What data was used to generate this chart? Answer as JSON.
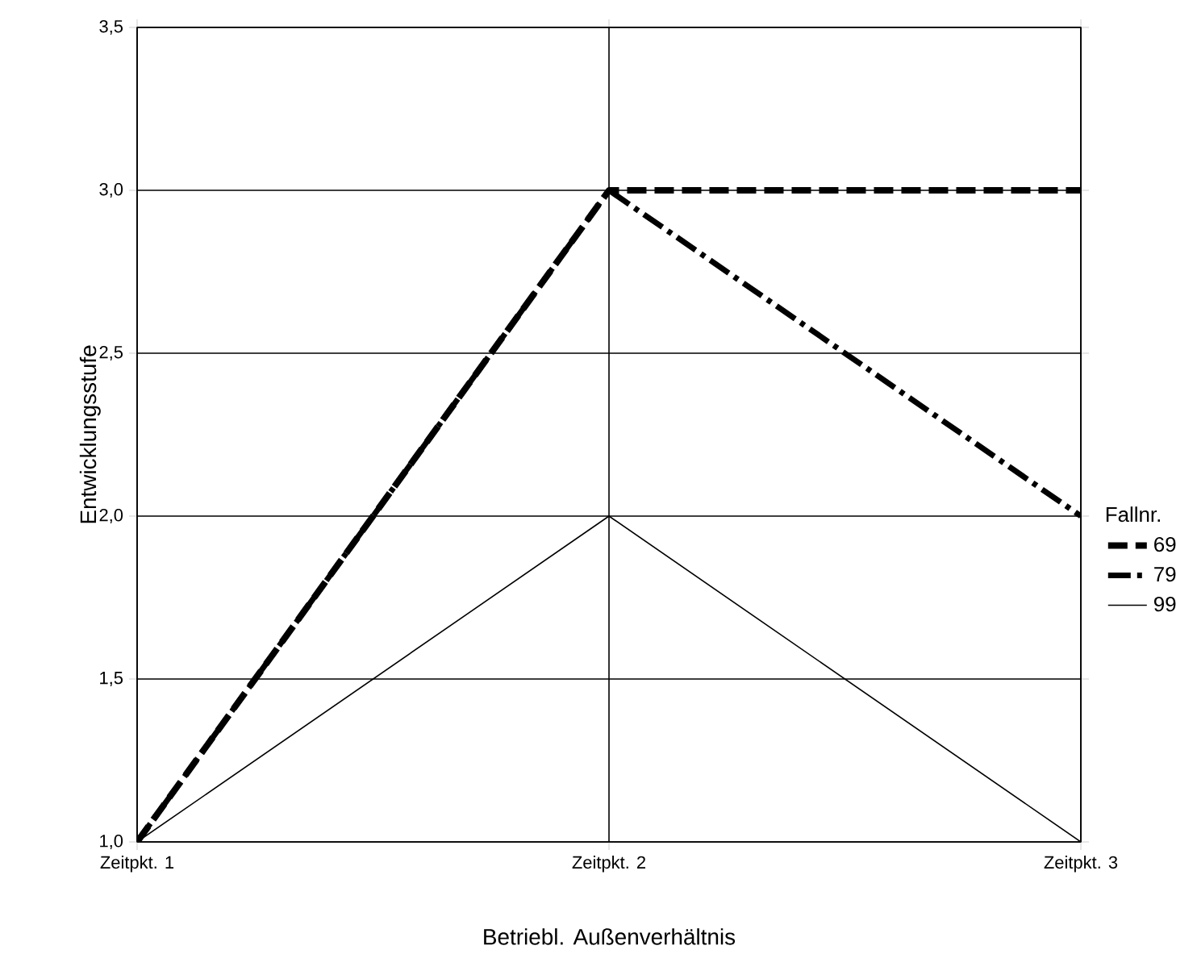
{
  "chart_data": {
    "type": "line",
    "xlabel": "Betriebl. Außenverhältnis",
    "ylabel": "Entwicklungsstufe",
    "legend_title": "Fallnr.",
    "categories": [
      "Zeitpkt. 1",
      "Zeitpkt. 2",
      "Zeitpkt. 3"
    ],
    "series": [
      {
        "name": "69",
        "color": "#000000",
        "line_style": "dashed",
        "values": [
          1.0,
          3.0,
          3.0
        ]
      },
      {
        "name": "79",
        "color": "#000000",
        "line_style": "dashdot",
        "values": [
          1.0,
          3.0,
          2.0
        ]
      },
      {
        "name": "99",
        "color": "#000000",
        "line_style": "solid",
        "values": [
          1.0,
          2.0,
          1.0
        ]
      }
    ],
    "ylim": [
      1.0,
      3.5
    ],
    "yticks": [
      {
        "value": 1.0,
        "label": "1,0"
      },
      {
        "value": 1.5,
        "label": "1,5"
      },
      {
        "value": 2.0,
        "label": "2,0"
      },
      {
        "value": 2.5,
        "label": "2,5"
      },
      {
        "value": 3.0,
        "label": "3,0"
      },
      {
        "value": 3.5,
        "label": "3,5"
      }
    ],
    "grid": true,
    "legend": "right",
    "marker": "none"
  }
}
